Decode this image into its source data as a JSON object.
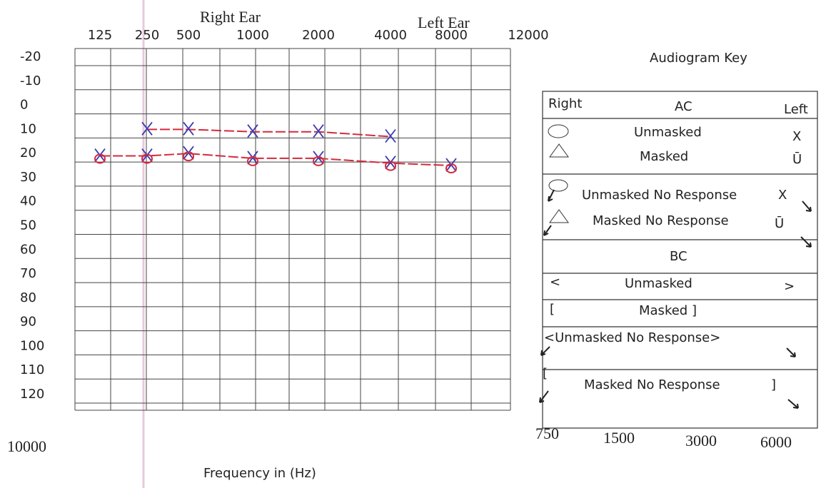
{
  "chart_data": {
    "type": "line",
    "labels": {
      "right_ear": "Right Ear",
      "left_ear": "Left Ear",
      "x_axis": "Frequency in (Hz)"
    },
    "categories": [
      "125",
      "250",
      "500",
      "1000",
      "2000",
      "4000",
      "8000",
      "12000"
    ],
    "bottom_labels": [
      "10000",
      "750",
      "1500",
      "3000",
      "6000"
    ],
    "ylim": [
      -20,
      120
    ],
    "yticks": [
      -20,
      -10,
      0,
      10,
      20,
      30,
      40,
      50,
      60,
      70,
      80,
      90,
      100,
      110,
      120
    ],
    "grid": true,
    "series": [
      {
        "color": "#d42a3c",
        "marker_color": "#3a3ab0",
        "values": [
          null,
          10,
          10,
          11,
          11,
          13,
          null,
          null
        ]
      },
      {
        "color": "#d42a3c",
        "marker_color": "#3a3ab0",
        "values": [
          21,
          21,
          20,
          22,
          22,
          24,
          25,
          null
        ]
      }
    ]
  },
  "key": {
    "title": "Audiogram Key",
    "header": {
      "right": "Right",
      "center": "AC",
      "left": "Left"
    },
    "ac_unmasked": {
      "label": "Unmasked",
      "left": "X"
    },
    "ac_masked": {
      "label": "Masked",
      "left": "Ū"
    },
    "ac_unmasked_nr": {
      "label": "Unmasked No Response",
      "left": "X"
    },
    "ac_masked_nr": {
      "label": "Masked No Response",
      "left": "Ū"
    },
    "bc": "BC",
    "bc_unmasked": {
      "right": "<",
      "label": "Unmasked",
      "left": ">"
    },
    "bc_masked": {
      "right": "[",
      "label": "Masked ]"
    },
    "bc_unmasked_nr": {
      "label": "<Unmasked No Response>"
    },
    "bc_masked_nr": {
      "right": "[",
      "label": "Masked No Response",
      "left": "]"
    }
  }
}
